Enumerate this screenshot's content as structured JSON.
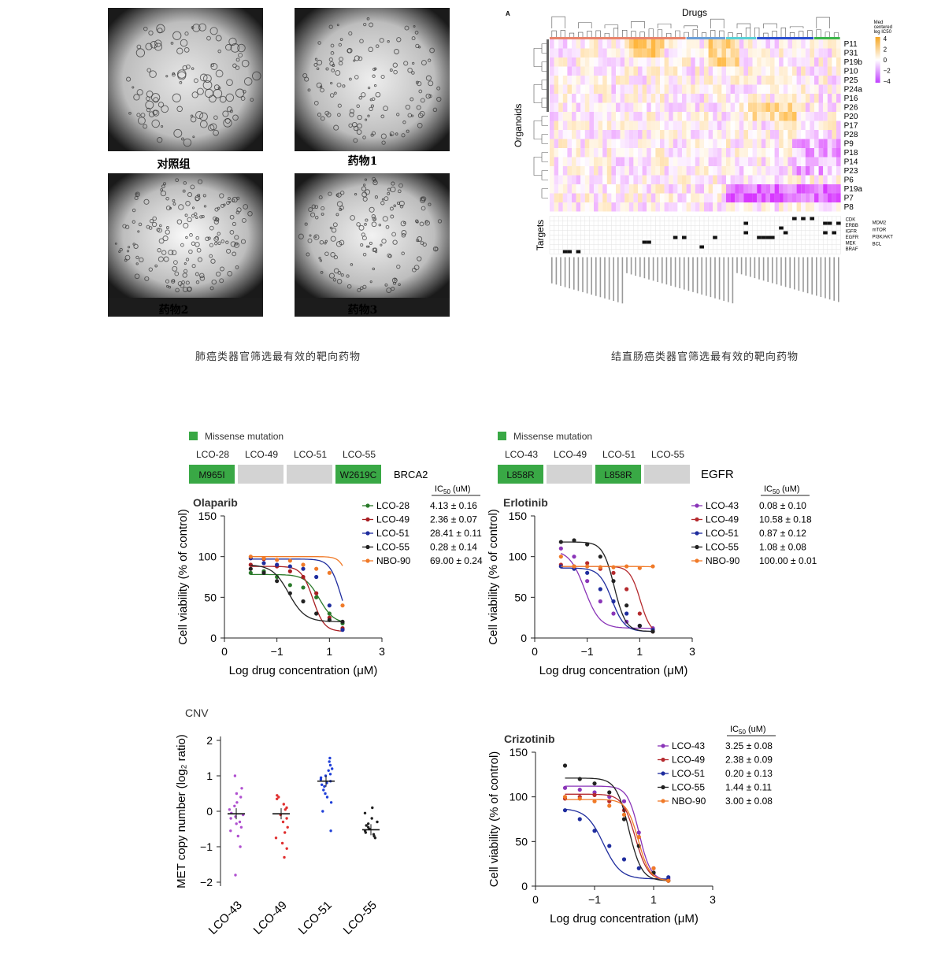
{
  "lung_panel": {
    "images": [
      {
        "label": "对照组",
        "variant": "control"
      },
      {
        "label": "药物1",
        "variant": "drug1"
      },
      {
        "label": "药物2",
        "variant": "drug2"
      },
      {
        "label": "药物3",
        "variant": "drug3"
      }
    ],
    "caption": "肺癌类器官筛选最有效的靶向药物"
  },
  "heatmap_panel": {
    "panel_letter": "A",
    "title": "Drugs",
    "y_title": "Organoids",
    "targets_title": "Targets",
    "legend_title": [
      "Med",
      "centered",
      "log IC50"
    ],
    "legend_ticks": [
      "4",
      "2",
      "0",
      "−2",
      "−4"
    ],
    "organoids": [
      "P11",
      "P31",
      "P19b",
      "P10",
      "P25",
      "P24a",
      "P16",
      "P26",
      "P20",
      "P17",
      "P28",
      "P9",
      "P18",
      "P14",
      "P23",
      "P6",
      "P19a",
      "P7",
      "P8"
    ],
    "targets_left": [
      "CDK",
      "ERBB",
      "IGFR",
      "EGFR",
      "MEK",
      "BRAF"
    ],
    "targets_right": [
      "MDM2",
      "mTOR",
      "PI3K/AKT",
      "BCL"
    ],
    "group_colors": [
      "#e8846c",
      "#6a9fd8",
      "#5ad0d6",
      "#2a4fd0",
      "#3bb54a"
    ],
    "caption": "结直肠癌类器官筛选最有效的靶向药物"
  },
  "brca_panel": {
    "legend": "Missense mutation",
    "gene": "BRCA2",
    "lines": [
      {
        "name": "LCO-28",
        "mutation": "M965I",
        "mutated": true
      },
      {
        "name": "LCO-49",
        "mutation": "",
        "mutated": false
      },
      {
        "name": "LCO-51",
        "mutation": "",
        "mutated": false
      },
      {
        "name": "LCO-55",
        "mutation": "W2619C",
        "mutated": true
      }
    ]
  },
  "egfr_panel": {
    "legend": "Missense mutation",
    "gene": "EGFR",
    "lines": [
      {
        "name": "LCO-43",
        "mutation": "L858R",
        "mutated": true
      },
      {
        "name": "LCO-49",
        "mutation": "",
        "mutated": false
      },
      {
        "name": "LCO-51",
        "mutation": "L858R",
        "mutated": true
      },
      {
        "name": "LCO-55",
        "mutation": "",
        "mutated": false
      }
    ]
  },
  "ic50_header": "IC",
  "ic50_sub": "50",
  "ic50_unit": " (uM)",
  "chart_data": [
    {
      "type": "line",
      "title": "Olaparib",
      "xlabel": "Log drug concentration (μM)",
      "ylabel": "Cell viability (% of control)",
      "xlim": [
        -3,
        3
      ],
      "ylim": [
        0,
        150
      ],
      "xticks": [
        "0",
        "−1",
        "1",
        "3"
      ],
      "yticks": [
        "0",
        "50",
        "100",
        "150"
      ],
      "series": [
        {
          "name": "LCO-28",
          "ic50": "4.13 ± 0.16",
          "color": "#2a7a2a",
          "top": 78,
          "bottom": 18,
          "logic50": 0.62,
          "hill": 1.6,
          "x": [
            -2,
            -1.5,
            -1,
            -0.5,
            0,
            0.5,
            1,
            1.5
          ],
          "y": [
            80,
            82,
            75,
            65,
            62,
            50,
            30,
            18
          ]
        },
        {
          "name": "LCO-49",
          "ic50": "2.36 ± 0.07",
          "color": "#a81e22",
          "top": 88,
          "bottom": 8,
          "logic50": 0.37,
          "hill": 2.0,
          "x": [
            -2,
            -1.5,
            -1,
            -0.5,
            0,
            0.5,
            1,
            1.5
          ],
          "y": [
            90,
            97,
            88,
            82,
            75,
            55,
            25,
            12
          ]
        },
        {
          "name": "LCO-51",
          "ic50": "28.41 ± 0.11",
          "color": "#1f2d9e",
          "top": 97,
          "bottom": 5,
          "logic50": 1.45,
          "hill": 2.0,
          "x": [
            -2,
            -1.5,
            -1,
            -0.5,
            0,
            0.5,
            1,
            1.5
          ],
          "y": [
            98,
            92,
            90,
            88,
            85,
            75,
            40,
            10
          ]
        },
        {
          "name": "LCO-55",
          "ic50": "0.28 ± 0.14",
          "color": "#222222",
          "top": 90,
          "bottom": 20,
          "logic50": -0.55,
          "hill": 1.4,
          "x": [
            -2,
            -1.5,
            -1,
            -0.5,
            0,
            0.5,
            1,
            1.5
          ],
          "y": [
            85,
            80,
            70,
            55,
            45,
            30,
            22,
            20
          ]
        },
        {
          "name": "NBO-90",
          "ic50": "69.00 ± 0.24",
          "color": "#f07a28",
          "top": 100,
          "bottom": 8,
          "logic50": 1.84,
          "hill": 2.5,
          "x": [
            -2,
            -1.5,
            -1,
            -0.5,
            0,
            0.5,
            1,
            1.5
          ],
          "y": [
            100,
            98,
            96,
            95,
            90,
            85,
            80,
            40
          ]
        }
      ]
    },
    {
      "type": "line",
      "title": "Erlotinib",
      "xlabel": "Log drug concentration (μM)",
      "ylabel": "Cell viability (% of control)",
      "xlim": [
        -3,
        3
      ],
      "ylim": [
        0,
        150
      ],
      "xticks": [
        "0",
        "−1",
        "1",
        "3"
      ],
      "yticks": [
        "0",
        "50",
        "100",
        "150"
      ],
      "series": [
        {
          "name": "LCO-43",
          "ic50": "0.08 ± 0.10",
          "color": "#8a35b8",
          "top": 108,
          "bottom": 12,
          "logic50": -1.1,
          "hill": 1.5,
          "x": [
            -2,
            -1.5,
            -1,
            -0.5,
            0,
            0.5,
            1,
            1.5
          ],
          "y": [
            110,
            100,
            70,
            45,
            30,
            20,
            15,
            12
          ]
        },
        {
          "name": "LCO-49",
          "ic50": "10.58 ± 0.18",
          "color": "#b52a2e",
          "top": 88,
          "bottom": 5,
          "logic50": 1.02,
          "hill": 2.2,
          "x": [
            -2,
            -1.5,
            -1,
            -0.5,
            0,
            0.5,
            1,
            1.5
          ],
          "y": [
            90,
            88,
            92,
            85,
            80,
            60,
            30,
            8
          ]
        },
        {
          "name": "LCO-51",
          "ic50": "0.87 ± 0.12",
          "color": "#1f2d9e",
          "top": 86,
          "bottom": 8,
          "logic50": -0.06,
          "hill": 1.8,
          "x": [
            -2,
            -1.5,
            -1,
            -0.5,
            0,
            0.5,
            1,
            1.5
          ],
          "y": [
            88,
            85,
            80,
            60,
            45,
            30,
            15,
            10
          ]
        },
        {
          "name": "LCO-55",
          "ic50": "1.08 ± 0.08",
          "color": "#222222",
          "top": 118,
          "bottom": 8,
          "logic50": 0.03,
          "hill": 2.0,
          "x": [
            -2,
            -1.5,
            -1,
            -0.5,
            0,
            0.5,
            1,
            1.5
          ],
          "y": [
            118,
            120,
            115,
            100,
            70,
            40,
            15,
            8
          ]
        },
        {
          "name": "NBO-90",
          "ic50": "100.00 ± 0.01",
          "color": "#f07a28",
          "top": 88,
          "bottom": 86,
          "logic50": 2.0,
          "hill": 1.0,
          "x": [
            -2,
            -1.5,
            -1,
            -0.5,
            0,
            0.5,
            1,
            1.5
          ],
          "y": [
            100,
            88,
            88,
            87,
            87,
            88,
            86,
            88
          ]
        }
      ]
    },
    {
      "type": "scatter",
      "title": "CNV",
      "ylabel": "MET copy number (log₂ ratio)",
      "ylim": [
        -2.2,
        2.2
      ],
      "yticks": [
        "2",
        "1",
        "0",
        "−1",
        "−2"
      ],
      "categories": [
        "LCO-43",
        "LCO-49",
        "LCO-51",
        "LCO-55"
      ],
      "colors": [
        "#b050d0",
        "#e03030",
        "#2040d8",
        "#202020"
      ],
      "means": [
        -0.07,
        -0.07,
        0.85,
        -0.52
      ],
      "points": [
        [
          1.0,
          0.65,
          0.5,
          0.4,
          0.25,
          0.15,
          0.05,
          -0.05,
          -0.1,
          -0.15,
          -0.2,
          -0.3,
          -0.35,
          -0.45,
          -0.55,
          -0.7,
          -1.0,
          -1.8
        ],
        [
          0.45,
          0.4,
          0.35,
          0.2,
          0.1,
          0.05,
          -0.1,
          -0.2,
          -0.3,
          -0.45,
          -0.6,
          -0.75,
          -0.9,
          -1.05,
          -1.3
        ],
        [
          1.5,
          1.4,
          1.3,
          1.2,
          1.15,
          1.05,
          1.0,
          0.95,
          0.9,
          0.85,
          0.8,
          0.75,
          0.7,
          0.6,
          0.5,
          0.4,
          0.25,
          0.0,
          -0.55
        ],
        [
          0.1,
          -0.05,
          -0.2,
          -0.3,
          -0.35,
          -0.4,
          -0.45,
          -0.5,
          -0.55,
          -0.6,
          -0.65,
          -0.7,
          -0.75
        ]
      ]
    },
    {
      "type": "line",
      "title": "Crizotinib",
      "xlabel": "Log drug concentration (μM)",
      "ylabel": "Cell viability (% of control)",
      "xlim": [
        -3,
        3
      ],
      "ylim": [
        0,
        150
      ],
      "xticks": [
        "0",
        "−1",
        "1",
        "3"
      ],
      "yticks": [
        "0",
        "50",
        "100",
        "150"
      ],
      "series": [
        {
          "name": "LCO-43",
          "ic50": "3.25 ± 0.08",
          "color": "#8a35b8",
          "top": 112,
          "bottom": 6,
          "logic50": 0.51,
          "hill": 2.2,
          "x": [
            -2,
            -1.5,
            -1,
            -0.5,
            0,
            0.5,
            1,
            1.5
          ],
          "y": [
            110,
            108,
            105,
            100,
            95,
            60,
            20,
            8
          ]
        },
        {
          "name": "LCO-49",
          "ic50": "2.38 ± 0.09",
          "color": "#b52a2e",
          "top": 103,
          "bottom": 6,
          "logic50": 0.38,
          "hill": 2.0,
          "x": [
            -2,
            -1.5,
            -1,
            -0.5,
            0,
            0.5,
            1,
            1.5
          ],
          "y": [
            98,
            100,
            102,
            95,
            85,
            55,
            15,
            6
          ]
        },
        {
          "name": "LCO-51",
          "ic50": "0.20 ± 0.13",
          "color": "#1f2d9e",
          "top": 87,
          "bottom": 8,
          "logic50": -0.7,
          "hill": 1.5,
          "x": [
            -2,
            -1.5,
            -1,
            -0.5,
            0,
            0.5,
            1,
            1.5
          ],
          "y": [
            85,
            75,
            62,
            45,
            30,
            20,
            15,
            10
          ]
        },
        {
          "name": "LCO-55",
          "ic50": "1.44 ± 0.11",
          "color": "#222222",
          "top": 121,
          "bottom": 6,
          "logic50": 0.16,
          "hill": 2.0,
          "x": [
            -2,
            -1.5,
            -1,
            -0.5,
            0,
            0.5,
            1,
            1.5
          ],
          "y": [
            135,
            120,
            115,
            105,
            75,
            45,
            15,
            6
          ]
        },
        {
          "name": "NBO-90",
          "ic50": "3.00 ± 0.08",
          "color": "#f07a28",
          "top": 97,
          "bottom": 6,
          "logic50": 0.48,
          "hill": 2.2,
          "x": [
            -2,
            -1.5,
            -1,
            -0.5,
            0,
            0.5,
            1,
            1.5
          ],
          "y": [
            100,
            98,
            95,
            90,
            80,
            55,
            20,
            6
          ]
        }
      ]
    }
  ]
}
